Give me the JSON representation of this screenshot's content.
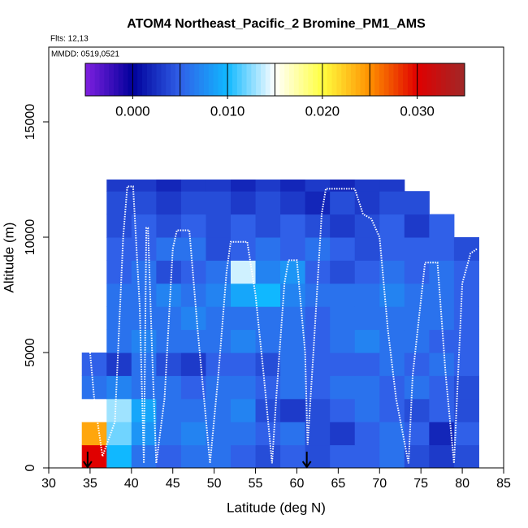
{
  "chart_data": {
    "type": "heatmap",
    "title": "ATOM4 Northeast_Pacific_2 Bromine_PM1_AMS",
    "flights_label": "Flts: 12,13",
    "dates_label": "MMDD: 0519,0521",
    "x_label": "Latitude (deg N)",
    "y_label": "Altitude (m)",
    "xlim": [
      30,
      85
    ],
    "ylim": [
      0,
      18240
    ],
    "xticks": [
      30,
      35,
      40,
      45,
      50,
      55,
      60,
      65,
      70,
      75,
      80,
      85
    ],
    "yticks": [
      0,
      5000,
      10000,
      15000
    ],
    "x_edges": [
      34,
      37,
      40,
      43,
      46,
      49,
      52,
      55,
      58,
      61,
      64,
      67,
      70,
      73,
      76,
      79,
      82
    ],
    "y_edges": [
      0,
      1000,
      2000,
      3000,
      4000,
      5000,
      6000,
      7000,
      8000,
      9000,
      10000,
      11000,
      12000,
      12500
    ],
    "z": [
      [
        0.03,
        0.01,
        0.006,
        0.005,
        0.006,
        0.006,
        0.005,
        0.004,
        0.005,
        0.004,
        0.005,
        0.005,
        0.006,
        0.004,
        0.003,
        0.004
      ],
      [
        0.024,
        0.012,
        0.008,
        0.006,
        0.007,
        0.006,
        0.006,
        0.005,
        0.006,
        0.004,
        0.003,
        0.005,
        0.006,
        0.005,
        0.002,
        0.005
      ],
      [
        0.015,
        0.013,
        0.009,
        0.006,
        0.006,
        0.006,
        0.007,
        0.004,
        0.003,
        0.004,
        0.005,
        0.006,
        0.005,
        0.004,
        0.005,
        0.004
      ],
      [
        0.006,
        0.007,
        0.006,
        0.006,
        0.005,
        0.006,
        0.006,
        0.005,
        0.006,
        0.005,
        0.006,
        0.006,
        0.005,
        0.006,
        0.005,
        0.004
      ],
      [
        0.005,
        0.003,
        0.006,
        0.004,
        0.003,
        0.005,
        0.005,
        0.004,
        0.006,
        0.005,
        0.005,
        0.005,
        0.006,
        0.005,
        0.006,
        0.005
      ],
      [
        null,
        0.006,
        0.007,
        0.006,
        0.006,
        0.006,
        0.007,
        0.006,
        0.006,
        0.005,
        0.006,
        0.007,
        0.006,
        0.006,
        0.005,
        0.005
      ],
      [
        null,
        0.006,
        0.006,
        0.006,
        0.007,
        0.006,
        0.006,
        0.006,
        0.006,
        0.005,
        0.006,
        0.006,
        0.006,
        0.006,
        0.006,
        0.005
      ],
      [
        null,
        0.006,
        0.006,
        0.007,
        0.006,
        0.007,
        0.009,
        0.01,
        0.007,
        0.006,
        0.006,
        0.006,
        0.007,
        0.006,
        0.006,
        0.005
      ],
      [
        null,
        0.005,
        0.006,
        0.004,
        0.005,
        0.006,
        0.014,
        0.007,
        0.008,
        0.005,
        0.004,
        0.005,
        0.006,
        0.005,
        0.006,
        0.005
      ],
      [
        null,
        0.005,
        0.005,
        0.006,
        0.006,
        0.004,
        0.005,
        0.006,
        0.005,
        0.006,
        0.005,
        0.004,
        0.005,
        0.005,
        0.005,
        0.004
      ],
      [
        null,
        0.004,
        0.005,
        0.004,
        0.005,
        0.004,
        0.005,
        0.004,
        0.005,
        0.004,
        0.003,
        0.004,
        0.005,
        0.003,
        0.005,
        null
      ],
      [
        null,
        0.004,
        0.004,
        0.003,
        0.004,
        0.004,
        0.003,
        0.004,
        0.003,
        0.002,
        0.004,
        0.003,
        0.004,
        0.004,
        null,
        null
      ],
      [
        null,
        0.003,
        0.003,
        0.002,
        0.003,
        0.003,
        0.002,
        0.003,
        0.002,
        0.003,
        0.002,
        0.003,
        0.003,
        null,
        null,
        null
      ]
    ],
    "zlim": [
      -0.005,
      0.035
    ],
    "colormap": [
      "#8020e0",
      "#00009a",
      "#3060e8",
      "#10b8ff",
      "#ffffff",
      "#ffff40",
      "#ff9000",
      "#e00000",
      "#a02828"
    ],
    "zticks": [
      {
        "value": 0,
        "label": "0.000"
      },
      {
        "value": 0.01,
        "label": "0.010"
      },
      {
        "value": 0.02,
        "label": "0.020"
      },
      {
        "value": 0.03,
        "label": "0.030"
      }
    ],
    "track": {
      "color": "#ffffff",
      "x": [
        35,
        35.5,
        36.5,
        38,
        39,
        39.5,
        40.2,
        41,
        41.5,
        41.8,
        42,
        42.5,
        43,
        44,
        45,
        45.5,
        47,
        48,
        49.5,
        50.5,
        51.5,
        52,
        54,
        55,
        56,
        57,
        57.5,
        58.5,
        59,
        60,
        61,
        61.3,
        62,
        63,
        63.5,
        67,
        68,
        69,
        70,
        71,
        72,
        73.5,
        74,
        75.5,
        77,
        78,
        79,
        80,
        81,
        81.8
      ],
      "y": [
        5000,
        3000,
        500,
        2000,
        10000,
        12200,
        12200,
        7000,
        200,
        10400,
        10400,
        5000,
        200,
        3000,
        9500,
        10300,
        10300,
        6000,
        200,
        4000,
        8500,
        9800,
        9800,
        7500,
        4000,
        200,
        3000,
        8000,
        9000,
        9000,
        5000,
        1000,
        5000,
        11000,
        12100,
        12100,
        11000,
        10800,
        10000,
        6000,
        3000,
        200,
        4000,
        8900,
        8900,
        4000,
        200,
        8000,
        9300,
        9500
      ]
    },
    "arrows": [
      34.7,
      61.2
    ]
  }
}
